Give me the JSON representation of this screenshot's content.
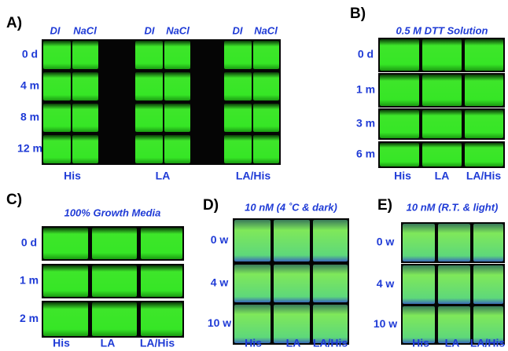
{
  "panels": [
    {
      "label": "A)",
      "column_headers": [
        "DI",
        "NaCl",
        "DI",
        "NaCl",
        "DI",
        "NaCl"
      ],
      "row_labels": [
        "0 d",
        "4 m",
        "8 m",
        "12 m"
      ],
      "bottom_labels": [
        "His",
        "LA",
        "LA/His"
      ]
    },
    {
      "label": "B)",
      "title": "0.5 M DTT Solution",
      "row_labels": [
        "0 d",
        "1 m",
        "3 m",
        "6 m"
      ],
      "bottom_labels": [
        "His",
        "LA",
        "LA/His"
      ]
    },
    {
      "label": "C)",
      "title": "100% Growth Media",
      "row_labels": [
        "0 d",
        "1 m",
        "2 m"
      ],
      "bottom_labels": [
        "His",
        "LA",
        "LA/His"
      ]
    },
    {
      "label": "D)",
      "title": "10 nM (4 ˚C & dark)",
      "row_labels": [
        "0 w",
        "4 w",
        "10 w"
      ],
      "bottom_labels": [
        "His",
        "LA",
        "LA/His"
      ]
    },
    {
      "label": "E)",
      "title": "10 nM (R.T. & light)",
      "row_labels": [
        "0 w",
        "4 w",
        "10 w"
      ],
      "bottom_labels": [
        "His",
        "LA",
        "LA/His"
      ]
    }
  ]
}
